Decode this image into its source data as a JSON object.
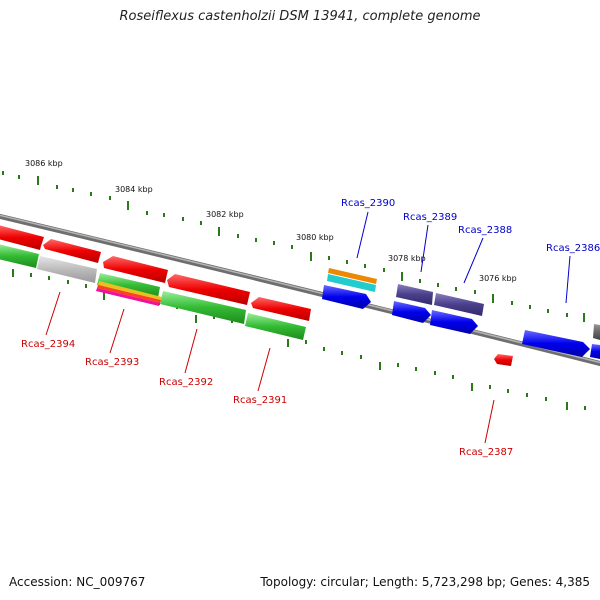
{
  "title": "Roseiflexus castenholzii DSM 13941, complete genome",
  "footer": {
    "accession": "Accession: NC_009767",
    "summary": "Topology: circular; Length: 5,723,298 bp; Genes: 4,385"
  },
  "colors": {
    "forward_gene": "#0000ee",
    "forward_gene_dark": "#4a3f8c",
    "reverse_gene": "#ff0000",
    "cds_green": "#33bb33",
    "hypothetical_grey": "#bbbbbb",
    "forward_label": "#0000cc",
    "reverse_label": "#cc0000",
    "backbone": "#808080",
    "tick": "#2a7a1a",
    "orange": "#ee8800",
    "cyan": "#22cccc",
    "magenta": "#ee1199",
    "yellow": "#dddd00"
  },
  "scale_labels": [
    "3086 kbp",
    "3084 kbp",
    "3082 kbp",
    "3080 kbp",
    "3078 kbp",
    "3076 kbp"
  ],
  "gene_labels": [
    "Rcas_2390",
    "Rcas_2389",
    "Rcas_2388",
    "Rcas_2386",
    "Rcas_2394",
    "Rcas_2393",
    "Rcas_2392",
    "Rcas_2391",
    "Rcas_2387"
  ]
}
